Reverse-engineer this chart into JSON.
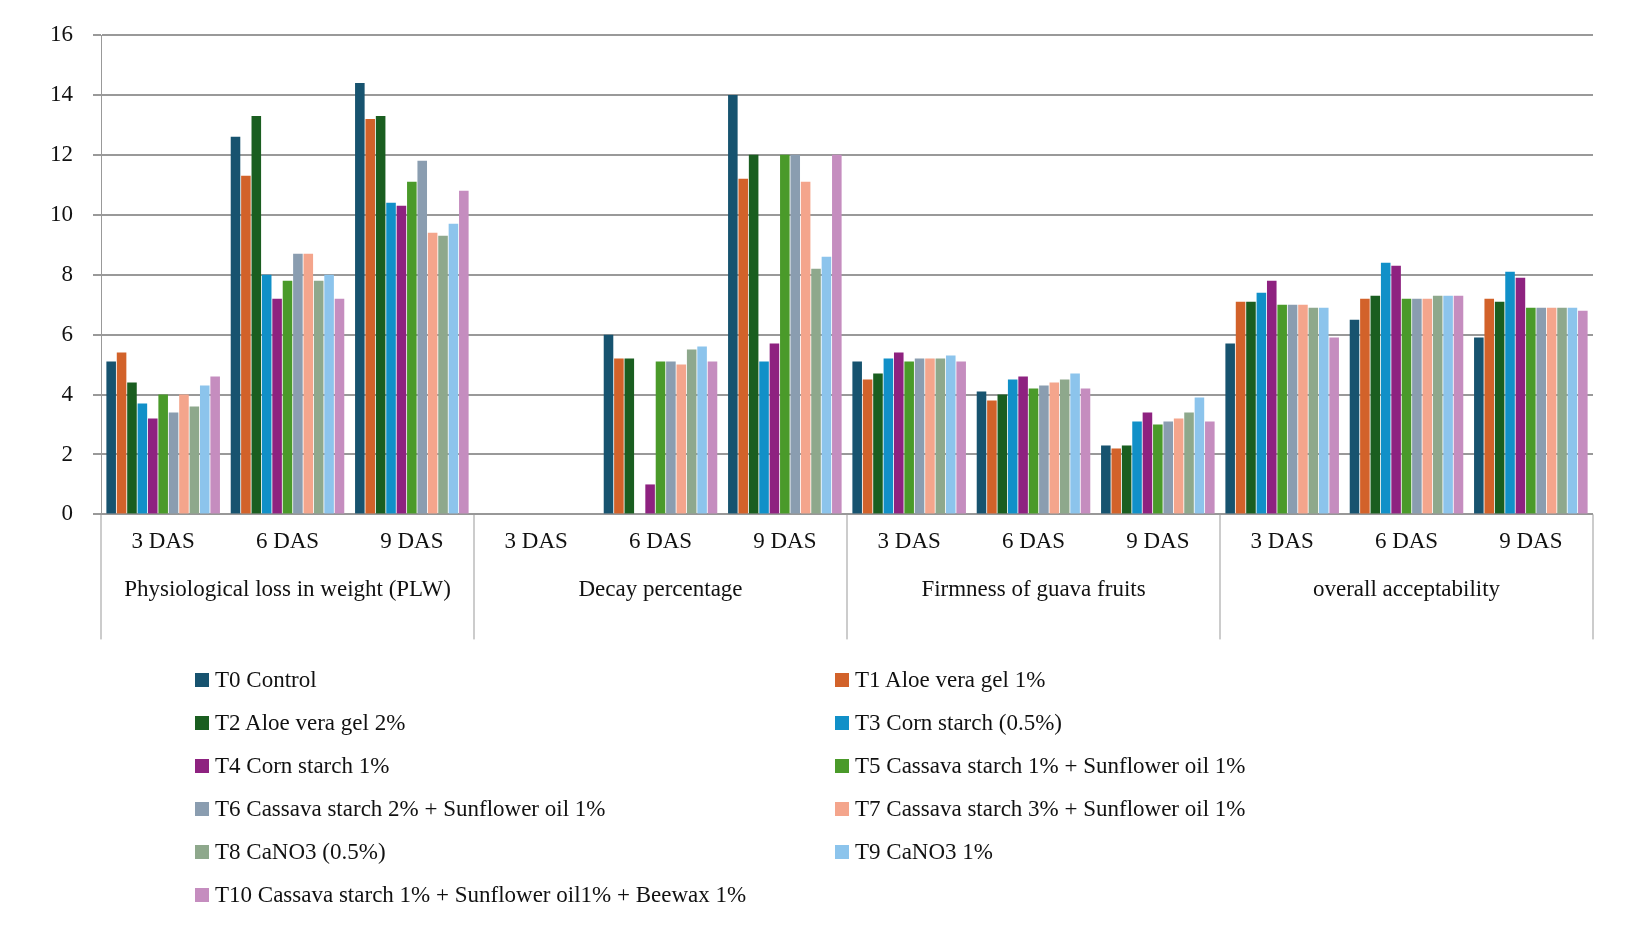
{
  "chart_data": {
    "type": "bar",
    "categories": [
      "3 DAS",
      "6 DAS",
      "9 DAS",
      "3 DAS",
      "6 DAS",
      "9 DAS",
      "3 DAS",
      "6 DAS",
      "9 DAS",
      "3 DAS",
      "6 DAS",
      "9 DAS"
    ],
    "annotations": [
      "Physiological loss in weight (PLW)",
      "Decay percentage",
      "Firmness of guava fruits",
      "overall acceptability"
    ],
    "series": [
      {
        "name": "T0 Control",
        "color": "#17536f",
        "values": [
          5.1,
          12.6,
          14.4,
          0,
          6.0,
          14.0,
          5.1,
          4.1,
          2.3,
          5.7,
          6.5,
          5.9
        ]
      },
      {
        "name": "T1 Aloe vera gel 1%",
        "color": "#d2622a",
        "values": [
          5.4,
          11.3,
          13.2,
          0,
          5.2,
          11.2,
          4.5,
          3.8,
          2.2,
          7.1,
          7.2,
          7.2
        ]
      },
      {
        "name": "T2 Aloe vera gel 2%",
        "color": "#1a5e20",
        "values": [
          4.4,
          13.3,
          13.3,
          0,
          5.2,
          12.0,
          4.7,
          4.0,
          2.3,
          7.1,
          7.3,
          7.1
        ]
      },
      {
        "name": "T3 Corn starch (0.5%)",
        "color": "#1190c8",
        "values": [
          3.7,
          8.0,
          10.4,
          0,
          0,
          5.1,
          5.2,
          4.5,
          3.1,
          7.4,
          8.4,
          8.1
        ]
      },
      {
        "name": "T4 Corn starch 1%",
        "color": "#8e2280",
        "values": [
          3.2,
          7.2,
          10.3,
          0,
          1.0,
          5.7,
          5.4,
          4.6,
          3.4,
          7.8,
          8.3,
          7.9
        ]
      },
      {
        "name": "T5 Cassava starch 1% + Sunflower oil 1%",
        "color": "#4a9a2a",
        "values": [
          4.0,
          7.8,
          11.1,
          0,
          5.1,
          12.0,
          5.1,
          4.2,
          3.0,
          7.0,
          7.2,
          6.9
        ]
      },
      {
        "name": "T6 Cassava starch 2% + Sunflower oil 1%",
        "color": "#8a9db0",
        "values": [
          3.4,
          8.7,
          11.8,
          0,
          5.1,
          12.0,
          5.2,
          4.3,
          3.1,
          7.0,
          7.2,
          6.9
        ]
      },
      {
        "name": "T7 Cassava starch 3% + Sunflower oil 1%",
        "color": "#f4a58c",
        "values": [
          4.0,
          8.7,
          9.4,
          0,
          5.0,
          11.1,
          5.2,
          4.4,
          3.2,
          7.0,
          7.2,
          6.9
        ]
      },
      {
        "name": "T8 CaNO3 (0.5%)",
        "color": "#8ea88c",
        "values": [
          3.6,
          7.8,
          9.3,
          0,
          5.5,
          8.2,
          5.2,
          4.5,
          3.4,
          6.9,
          7.3,
          6.9
        ]
      },
      {
        "name": "T9 CaNO3 1%",
        "color": "#8cc4ec",
        "values": [
          4.3,
          8.0,
          9.7,
          0,
          5.6,
          8.6,
          5.3,
          4.7,
          3.9,
          6.9,
          7.3,
          6.9
        ]
      },
      {
        "name": "T10 Cassava starch 1% + Sunflower oil1% + Beewax 1%",
        "color": "#c58dbf",
        "values": [
          4.6,
          7.2,
          10.8,
          0,
          5.1,
          12.0,
          5.1,
          4.2,
          3.1,
          5.9,
          7.3,
          6.8
        ]
      }
    ],
    "ylim": [
      0,
      16
    ],
    "yticks": [
      0,
      2,
      4,
      6,
      8,
      10,
      12,
      14,
      16
    ],
    "grid": "y",
    "legend": "bottom"
  }
}
